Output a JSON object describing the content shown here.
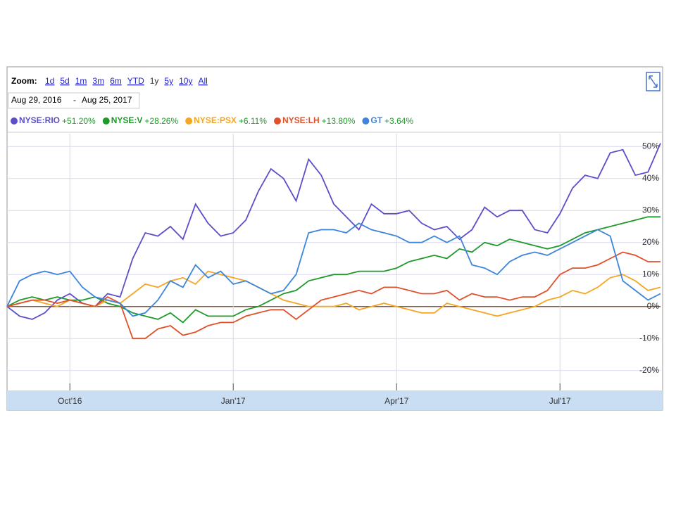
{
  "chart_data": {
    "type": "line",
    "zoom_label": "Zoom:",
    "zoom_options": [
      "1d",
      "5d",
      "1m",
      "3m",
      "6m",
      "YTD",
      "1y",
      "5y",
      "10y",
      "All"
    ],
    "date_range": {
      "start": "Aug 29, 2016",
      "separator": "-",
      "end": "Aug 25, 2017"
    },
    "categories": [
      null,
      null,
      null,
      null,
      null,
      "Oct'16",
      null,
      null,
      null,
      null,
      null,
      null,
      null,
      null,
      null,
      null,
      null,
      null,
      "Jan'17",
      null,
      null,
      null,
      null,
      null,
      null,
      null,
      null,
      null,
      null,
      null,
      null,
      "Apr'17",
      null,
      null,
      null,
      null,
      null,
      null,
      null,
      null,
      null,
      null,
      null,
      null,
      "Jul'17",
      null,
      null,
      null,
      null,
      null,
      null,
      null,
      null
    ],
    "series": [
      {
        "name": "NYSE:RIO",
        "change": "+51.20%",
        "color": "#5b4fc9",
        "values": [
          0,
          -3,
          -4,
          -2,
          2,
          4,
          1,
          0,
          4,
          3,
          15,
          23,
          22,
          25,
          21,
          32,
          26,
          22,
          23,
          27,
          36,
          43,
          40,
          33,
          46,
          41,
          32,
          28,
          24,
          32,
          29,
          29,
          30,
          26,
          24,
          25,
          21,
          24,
          31,
          28,
          30,
          30,
          24,
          23,
          29,
          37,
          41,
          40,
          48,
          49,
          41,
          42,
          51
        ]
      },
      {
        "name": "NYSE:V",
        "change": "+28.26%",
        "color": "#1f9a2a",
        "values": [
          0,
          2,
          3,
          2,
          3,
          2,
          2,
          3,
          1,
          0,
          -2,
          -3,
          -4,
          -2,
          -5,
          -1,
          -3,
          -3,
          -3,
          -1,
          0,
          2,
          4,
          5,
          8,
          9,
          10,
          10,
          11,
          11,
          11,
          12,
          14,
          15,
          16,
          15,
          18,
          17,
          20,
          19,
          21,
          20,
          19,
          18,
          19,
          21,
          23,
          24,
          25,
          26,
          27,
          28,
          28
        ]
      },
      {
        "name": "NYSE:PSX",
        "change": "+6.11%",
        "color": "#f5a623",
        "values": [
          0,
          1,
          2,
          1,
          0,
          2,
          1,
          0,
          2,
          1,
          4,
          7,
          6,
          8,
          9,
          7,
          11,
          10,
          9,
          8,
          6,
          4,
          2,
          1,
          0,
          0,
          0,
          1,
          -1,
          0,
          1,
          0,
          -1,
          -2,
          -2,
          1,
          0,
          -1,
          -2,
          -3,
          -2,
          -1,
          0,
          2,
          3,
          5,
          4,
          6,
          9,
          10,
          8,
          5,
          6
        ]
      },
      {
        "name": "NYSE:LH",
        "change": "+13.80%",
        "color": "#e0512b",
        "values": [
          0,
          1,
          2,
          2,
          1,
          2,
          1,
          0,
          3,
          1,
          -10,
          -10,
          -7,
          -6,
          -9,
          -8,
          -6,
          -5,
          -5,
          -3,
          -2,
          -1,
          -1,
          -4,
          -1,
          2,
          3,
          4,
          5,
          4,
          6,
          6,
          5,
          4,
          4,
          5,
          2,
          4,
          3,
          3,
          2,
          3,
          3,
          5,
          10,
          12,
          12,
          13,
          15,
          17,
          16,
          14,
          14
        ]
      },
      {
        "name": "GT",
        "change": "+3.64%",
        "color": "#3d85d8",
        "values": [
          0,
          8,
          10,
          11,
          10,
          11,
          6,
          3,
          2,
          1,
          -3,
          -2,
          2,
          8,
          6,
          13,
          9,
          11,
          7,
          8,
          6,
          4,
          5,
          10,
          23,
          24,
          24,
          23,
          26,
          24,
          23,
          22,
          20,
          20,
          22,
          20,
          22,
          13,
          12,
          10,
          14,
          16,
          17,
          16,
          18,
          20,
          22,
          24,
          22,
          8,
          5,
          2,
          4
        ]
      }
    ],
    "change_color": "#1f9a2a",
    "ylim": [
      -26,
      54
    ],
    "yticks": [
      {
        "value": -20,
        "label": "-20%"
      },
      {
        "value": -10,
        "label": "-10%"
      },
      {
        "value": 0,
        "label": "0%"
      },
      {
        "value": 10,
        "label": "10%"
      },
      {
        "value": 20,
        "label": "20%"
      },
      {
        "value": 30,
        "label": "30%"
      },
      {
        "value": 40,
        "label": "40%"
      },
      {
        "value": 50,
        "label": "50%"
      }
    ],
    "grid": true
  }
}
